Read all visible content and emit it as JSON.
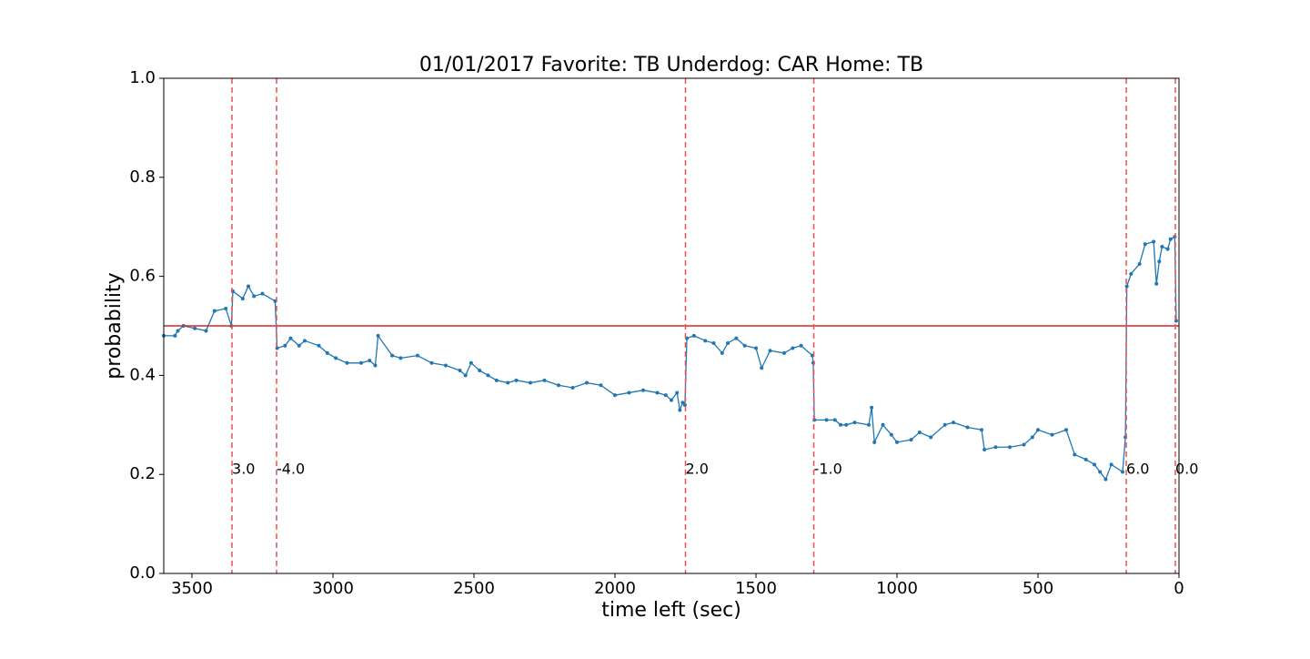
{
  "chart_data": {
    "type": "line",
    "title": "01/01/2017 Favorite: TB Underdog: CAR Home: TB",
    "xlabel": "time left (sec)",
    "ylabel": "probability",
    "color": "#1f77b4",
    "x": [
      3600,
      3560,
      3550,
      3530,
      3490,
      3450,
      3420,
      3380,
      3360,
      3355,
      3320,
      3300,
      3280,
      3250,
      3205,
      3198,
      3170,
      3150,
      3120,
      3100,
      3050,
      3020,
      2990,
      2950,
      2900,
      2870,
      2850,
      2840,
      2790,
      2760,
      2700,
      2650,
      2600,
      2550,
      2530,
      2510,
      2480,
      2450,
      2420,
      2380,
      2350,
      2300,
      2250,
      2200,
      2150,
      2100,
      2050,
      2000,
      1950,
      1900,
      1850,
      1820,
      1800,
      1780,
      1770,
      1760,
      1752,
      1745,
      1720,
      1680,
      1650,
      1620,
      1600,
      1570,
      1540,
      1500,
      1480,
      1450,
      1400,
      1370,
      1340,
      1300,
      1297,
      1293,
      1250,
      1220,
      1200,
      1180,
      1150,
      1100,
      1090,
      1080,
      1050,
      1020,
      1000,
      950,
      920,
      880,
      830,
      800,
      750,
      700,
      690,
      650,
      600,
      550,
      520,
      500,
      450,
      400,
      370,
      330,
      300,
      280,
      260,
      240,
      200,
      190,
      185,
      170,
      140,
      120,
      90,
      80,
      70,
      60,
      40,
      30,
      15,
      10
    ],
    "values": [
      0.48,
      0.48,
      0.49,
      0.5,
      0.495,
      0.49,
      0.53,
      0.535,
      0.5,
      0.57,
      0.555,
      0.58,
      0.56,
      0.565,
      0.55,
      0.455,
      0.46,
      0.475,
      0.46,
      0.47,
      0.46,
      0.445,
      0.435,
      0.425,
      0.425,
      0.43,
      0.42,
      0.48,
      0.44,
      0.435,
      0.44,
      0.425,
      0.42,
      0.41,
      0.4,
      0.425,
      0.41,
      0.4,
      0.39,
      0.385,
      0.39,
      0.385,
      0.39,
      0.38,
      0.375,
      0.385,
      0.38,
      0.36,
      0.365,
      0.37,
      0.365,
      0.36,
      0.35,
      0.365,
      0.33,
      0.345,
      0.34,
      0.475,
      0.48,
      0.47,
      0.465,
      0.445,
      0.465,
      0.475,
      0.46,
      0.455,
      0.415,
      0.45,
      0.445,
      0.455,
      0.46,
      0.44,
      0.425,
      0.31,
      0.31,
      0.31,
      0.3,
      0.3,
      0.305,
      0.3,
      0.335,
      0.265,
      0.3,
      0.28,
      0.265,
      0.27,
      0.285,
      0.275,
      0.3,
      0.305,
      0.295,
      0.29,
      0.25,
      0.255,
      0.255,
      0.26,
      0.275,
      0.29,
      0.28,
      0.29,
      0.24,
      0.23,
      0.22,
      0.205,
      0.19,
      0.22,
      0.205,
      0.275,
      0.58,
      0.605,
      0.625,
      0.665,
      0.67,
      0.585,
      0.63,
      0.66,
      0.655,
      0.675,
      0.68,
      0.51
    ],
    "xlim": [
      3600,
      0
    ],
    "ylim": [
      0,
      1
    ],
    "xticks": [
      3500,
      3000,
      2500,
      2000,
      1500,
      1000,
      500,
      0
    ],
    "yticks": [
      {
        "value": 0,
        "label": "0.0"
      },
      0.2,
      0.4,
      0.6,
      0.8,
      {
        "value": 1,
        "label": "1.0"
      }
    ],
    "hline": {
      "value": 0.5,
      "color": "#d62728"
    },
    "vlines": [
      {
        "value": 3358,
        "label": "3.0"
      },
      {
        "value": 3200,
        "label": "-4.0"
      },
      {
        "value": 1750,
        "label": "2.0"
      },
      {
        "value": 1295,
        "label": "-1.0"
      },
      {
        "value": 187,
        "label": "6.0"
      },
      {
        "value": 13,
        "label": "0.0"
      }
    ],
    "vline_color": "#f05050"
  }
}
